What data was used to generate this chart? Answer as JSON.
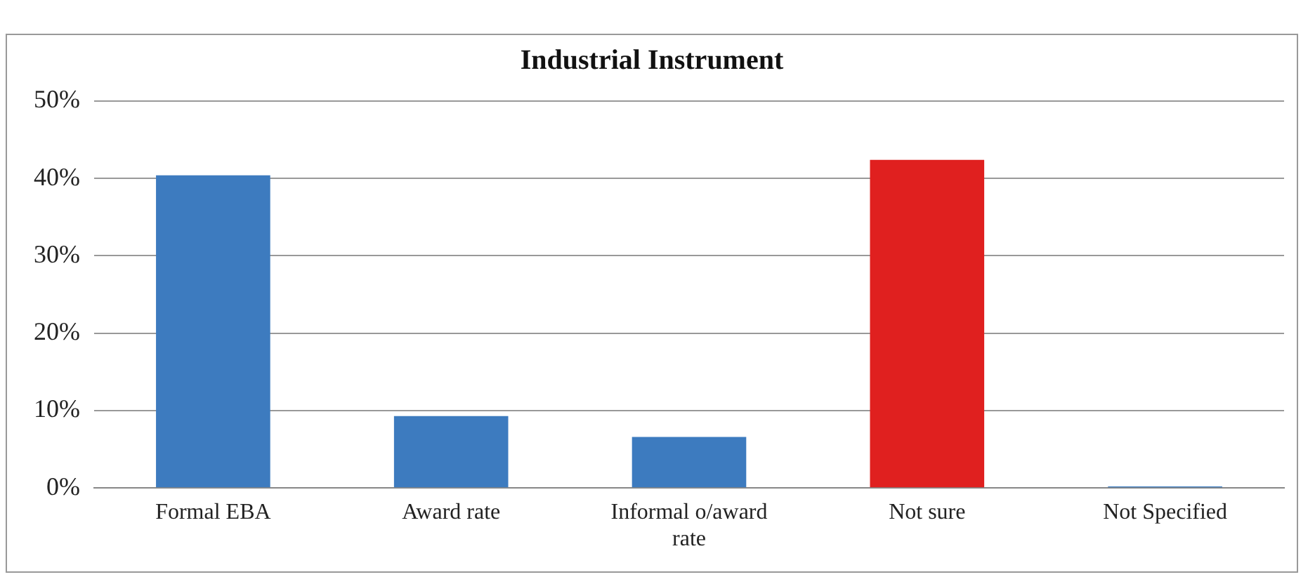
{
  "chart_data": {
    "type": "bar",
    "title": "Industrial Instrument",
    "categories": [
      "Formal EBA",
      "Award rate",
      "Informal o/award rate",
      "Not sure",
      "Not Specified"
    ],
    "values": [
      40.4,
      9.3,
      6.6,
      42.4,
      0.2
    ],
    "colors": [
      "#3d7bbf",
      "#3d7bbf",
      "#3d7bbf",
      "#e0201f",
      "#3d7bbf"
    ],
    "ylim": [
      0,
      50
    ],
    "yticks": [
      {
        "value": 0,
        "label": "0%"
      },
      {
        "value": 10,
        "label": "10%"
      },
      {
        "value": 20,
        "label": "20%"
      },
      {
        "value": 30,
        "label": "30%"
      },
      {
        "value": 40,
        "label": "40%"
      },
      {
        "value": 50,
        "label": "50%"
      }
    ],
    "grid": "y",
    "legend": false
  }
}
